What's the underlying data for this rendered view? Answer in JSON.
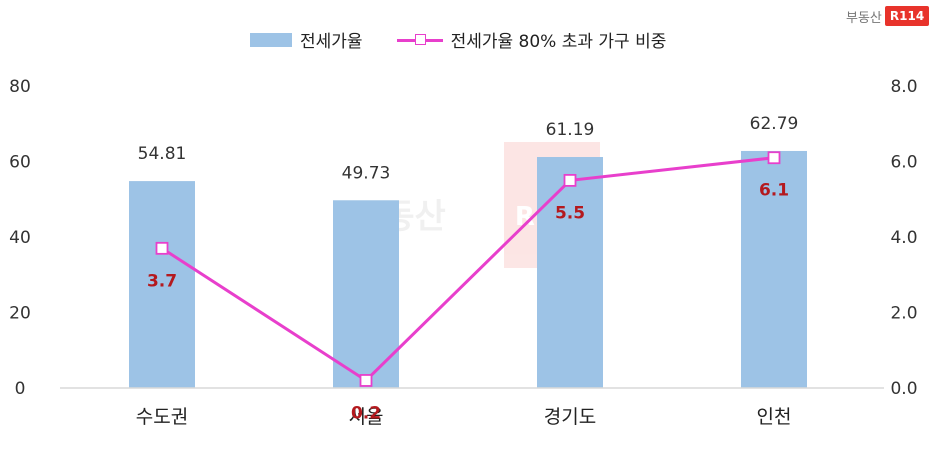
{
  "logo": {
    "text": "부동산",
    "box": "R114"
  },
  "watermark": {
    "text": "부동산",
    "box": "R114"
  },
  "colors": {
    "bar": "#9dc3e6",
    "line": "#e83fcc",
    "line_label": "#b4191e",
    "axis_text": "#333333"
  },
  "chart_data": {
    "type": "bar",
    "categories": [
      "수도권",
      "서울",
      "경기도",
      "인천"
    ],
    "series": [
      {
        "name": "전세가율",
        "type": "bar",
        "axis": "left",
        "values": [
          54.81,
          49.73,
          61.19,
          62.79
        ],
        "labels": [
          "54.81",
          "49.73",
          "61.19",
          "62.79"
        ]
      },
      {
        "name": "전세가율 80% 초과 가구 비중",
        "type": "line",
        "axis": "right",
        "values": [
          3.7,
          0.2,
          5.5,
          6.1
        ],
        "labels": [
          "3.7",
          "0.2",
          "5.5",
          "6.1"
        ]
      }
    ],
    "left_axis": {
      "min": 0,
      "max": 80,
      "ticks": [
        "0",
        "20",
        "40",
        "60",
        "80"
      ]
    },
    "right_axis": {
      "min": 0,
      "max": 8,
      "ticks": [
        "0.0",
        "2.0",
        "4.0",
        "6.0",
        "8.0"
      ]
    },
    "grid": false,
    "legend": "top-center"
  }
}
